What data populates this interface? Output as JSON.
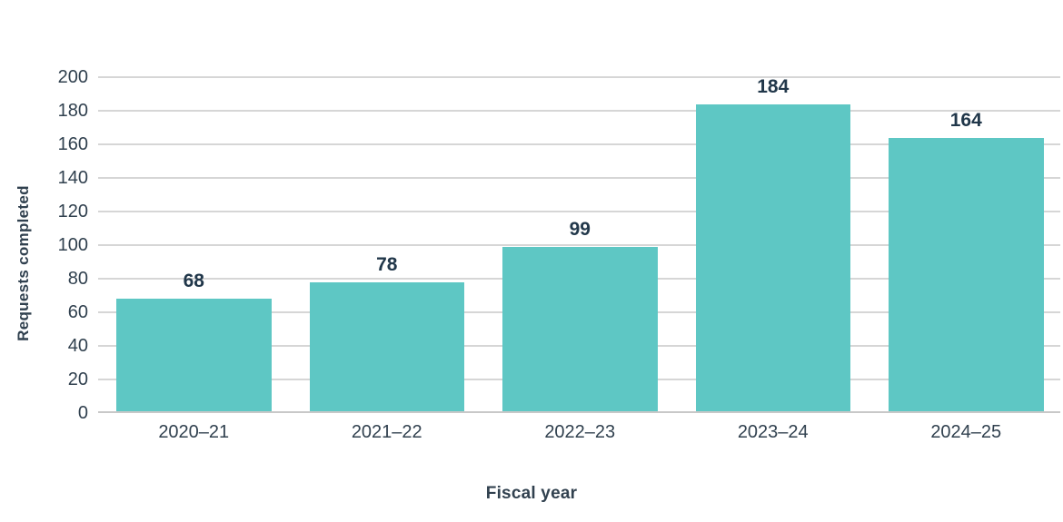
{
  "chart_data": {
    "type": "bar",
    "title": "",
    "categories": [
      "2020–21",
      "2021–22",
      "2022–23",
      "2023–24",
      "2024–25"
    ],
    "values": [
      68,
      78,
      99,
      184,
      164
    ],
    "xlabel": "Fiscal year",
    "ylabel": "Requests completed",
    "ylim": [
      0,
      200
    ],
    "ytick_step": 20,
    "yticks": [
      0,
      20,
      40,
      60,
      80,
      100,
      120,
      140,
      160,
      180,
      200
    ],
    "grid": "horizontal",
    "legend": "none",
    "colors": {
      "bar": "#5ec7c4",
      "axis_text": "#31414f",
      "value_label_text": "#21374a",
      "gridline": "#d6d6d6",
      "baseline": "#c8c8c8",
      "background": "#ffffff"
    }
  }
}
